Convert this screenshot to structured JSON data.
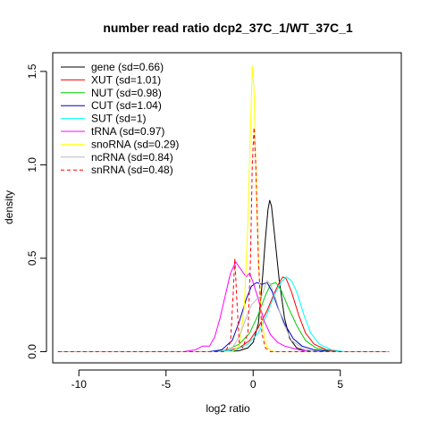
{
  "chart_data": {
    "type": "line",
    "title": "number read ratio dcp2_37C_1/WT_37C_1",
    "xlabel": "log2 ratio",
    "ylabel": "density",
    "xlim": [
      -11.5,
      8.5
    ],
    "ylim": [
      -0.06,
      1.6
    ],
    "x_ticks": [
      -10,
      -5,
      0,
      5
    ],
    "x_tick_labels": [
      "-10",
      "-5",
      "0",
      "5"
    ],
    "y_ticks": [
      0.0,
      0.5,
      1.0,
      1.5
    ],
    "y_tick_labels": [
      "0.0",
      "0.5",
      "1.0",
      "1.5"
    ],
    "grid": false,
    "legend_position": "top-left",
    "series": [
      {
        "name": "gene (sd=0.66)",
        "color": "#000000",
        "dash": "solid",
        "points": [
          [
            -11.2,
            0
          ],
          [
            -1.5,
            0
          ],
          [
            -0.8,
            0.005
          ],
          [
            -0.3,
            0.02
          ],
          [
            0,
            0.05
          ],
          [
            0.3,
            0.15
          ],
          [
            0.5,
            0.35
          ],
          [
            0.7,
            0.6
          ],
          [
            0.85,
            0.76
          ],
          [
            0.95,
            0.81
          ],
          [
            1.05,
            0.78
          ],
          [
            1.2,
            0.65
          ],
          [
            1.5,
            0.38
          ],
          [
            1.8,
            0.18
          ],
          [
            2.1,
            0.07
          ],
          [
            2.5,
            0.02
          ],
          [
            3,
            0.004
          ],
          [
            4,
            0
          ],
          [
            7.8,
            0
          ]
        ]
      },
      {
        "name": "XUT (sd=1.01)",
        "color": "#ff0000",
        "dash": "solid",
        "points": [
          [
            -11.2,
            0
          ],
          [
            -2.5,
            0
          ],
          [
            -1.5,
            0.005
          ],
          [
            -0.8,
            0.02
          ],
          [
            -0.2,
            0.06
          ],
          [
            0.3,
            0.13
          ],
          [
            0.8,
            0.22
          ],
          [
            1.2,
            0.31
          ],
          [
            1.5,
            0.37
          ],
          [
            1.7,
            0.4
          ],
          [
            1.9,
            0.39
          ],
          [
            2.2,
            0.32
          ],
          [
            2.6,
            0.2
          ],
          [
            3,
            0.1
          ],
          [
            3.5,
            0.04
          ],
          [
            4.2,
            0.01
          ],
          [
            5,
            0
          ],
          [
            7.8,
            0
          ]
        ]
      },
      {
        "name": "NUT (sd=0.98)",
        "color": "#00cc00",
        "dash": "solid",
        "points": [
          [
            -11.2,
            0
          ],
          [
            -2.5,
            0
          ],
          [
            -1.5,
            0.01
          ],
          [
            -0.8,
            0.04
          ],
          [
            -0.2,
            0.1
          ],
          [
            0.3,
            0.2
          ],
          [
            0.7,
            0.3
          ],
          [
            1.0,
            0.36
          ],
          [
            1.3,
            0.37
          ],
          [
            1.6,
            0.33
          ],
          [
            2.0,
            0.24
          ],
          [
            2.5,
            0.14
          ],
          [
            3,
            0.06
          ],
          [
            3.6,
            0.02
          ],
          [
            4.5,
            0
          ],
          [
            7.8,
            0
          ]
        ]
      },
      {
        "name": "CUT (sd=1.04)",
        "color": "#0000cc",
        "dash": "solid",
        "points": [
          [
            -11.2,
            0
          ],
          [
            -2.5,
            0
          ],
          [
            -1.8,
            0.01
          ],
          [
            -1.2,
            0.06
          ],
          [
            -0.8,
            0.16
          ],
          [
            -0.4,
            0.28
          ],
          [
            -0.1,
            0.35
          ],
          [
            0.2,
            0.37
          ],
          [
            0.5,
            0.36
          ],
          [
            0.8,
            0.37
          ],
          [
            1.1,
            0.32
          ],
          [
            1.4,
            0.24
          ],
          [
            1.8,
            0.15
          ],
          [
            2.3,
            0.07
          ],
          [
            2.8,
            0.03
          ],
          [
            3.5,
            0.01
          ],
          [
            4.5,
            0
          ],
          [
            7.8,
            0
          ]
        ]
      },
      {
        "name": "SUT (sd=1)",
        "color": "#00ffff",
        "dash": "solid",
        "points": [
          [
            -11.2,
            0
          ],
          [
            -2,
            0
          ],
          [
            -1,
            0.01
          ],
          [
            -0.3,
            0.04
          ],
          [
            0.3,
            0.1
          ],
          [
            0.8,
            0.2
          ],
          [
            1.2,
            0.3
          ],
          [
            1.6,
            0.37
          ],
          [
            1.9,
            0.4
          ],
          [
            2.2,
            0.38
          ],
          [
            2.5,
            0.32
          ],
          [
            2.9,
            0.2
          ],
          [
            3.3,
            0.1
          ],
          [
            3.8,
            0.04
          ],
          [
            4.5,
            0.01
          ],
          [
            5.2,
            0
          ],
          [
            7.8,
            0
          ]
        ]
      },
      {
        "name": "tRNA (sd=0.97)",
        "color": "#ff00ff",
        "dash": "solid",
        "points": [
          [
            -11.2,
            0
          ],
          [
            -4,
            0
          ],
          [
            -3.3,
            0.01
          ],
          [
            -2.9,
            0.03
          ],
          [
            -2.5,
            0.03
          ],
          [
            -2.2,
            0.08
          ],
          [
            -1.9,
            0.18
          ],
          [
            -1.6,
            0.3
          ],
          [
            -1.3,
            0.42
          ],
          [
            -1.0,
            0.48
          ],
          [
            -0.7,
            0.44
          ],
          [
            -0.4,
            0.4
          ],
          [
            -0.2,
            0.42
          ],
          [
            0,
            0.37
          ],
          [
            0.3,
            0.28
          ],
          [
            0.6,
            0.17
          ],
          [
            1.0,
            0.09
          ],
          [
            1.4,
            0.05
          ],
          [
            1.8,
            0.03
          ],
          [
            2.2,
            0.02
          ],
          [
            2.6,
            0.01
          ],
          [
            3.2,
            0
          ],
          [
            7.8,
            0
          ]
        ]
      },
      {
        "name": "snoRNA (sd=0.29)",
        "color": "#ffff00",
        "dash": "solid",
        "points": [
          [
            -11.2,
            0
          ],
          [
            -1.2,
            0
          ],
          [
            -0.8,
            0.03
          ],
          [
            -0.5,
            0.25
          ],
          [
            -0.3,
            0.7
          ],
          [
            -0.15,
            1.2
          ],
          [
            -0.05,
            1.53
          ],
          [
            0.05,
            1.4
          ],
          [
            0.15,
            1.0
          ],
          [
            0.3,
            0.5
          ],
          [
            0.5,
            0.15
          ],
          [
            0.8,
            0.02
          ],
          [
            1.2,
            0
          ],
          [
            7.8,
            0
          ]
        ]
      },
      {
        "name": "ncRNA (sd=0.84)",
        "color": "#bbbbbb",
        "dash": "solid",
        "points": [
          [
            -11.2,
            0
          ],
          [
            -2,
            0
          ],
          [
            -1.2,
            0.02
          ],
          [
            -0.8,
            0.08
          ],
          [
            -0.4,
            0.18
          ],
          [
            -0.1,
            0.25
          ],
          [
            0.2,
            0.28
          ],
          [
            0.5,
            0.3
          ],
          [
            0.8,
            0.38
          ],
          [
            1.0,
            0.36
          ],
          [
            1.3,
            0.28
          ],
          [
            1.7,
            0.16
          ],
          [
            2.2,
            0.06
          ],
          [
            2.8,
            0.02
          ],
          [
            3.5,
            0
          ],
          [
            7.8,
            0
          ]
        ]
      },
      {
        "name": "snRNA (sd=0.48)",
        "color": "#ff0000",
        "dash": "dashed",
        "points": [
          [
            -11.2,
            0
          ],
          [
            -1.6,
            0
          ],
          [
            -1.3,
            0.05
          ],
          [
            -1.15,
            0.3
          ],
          [
            -1.05,
            0.5
          ],
          [
            -0.95,
            0.3
          ],
          [
            -0.8,
            0.05
          ],
          [
            -0.6,
            0.02
          ],
          [
            -0.3,
            0.1
          ],
          [
            -0.15,
            0.5
          ],
          [
            -0.05,
            1.0
          ],
          [
            0.05,
            1.2
          ],
          [
            0.15,
            1.0
          ],
          [
            0.3,
            0.5
          ],
          [
            0.5,
            0.1
          ],
          [
            0.7,
            0.02
          ],
          [
            1.0,
            0
          ],
          [
            7.8,
            0
          ]
        ]
      }
    ]
  }
}
